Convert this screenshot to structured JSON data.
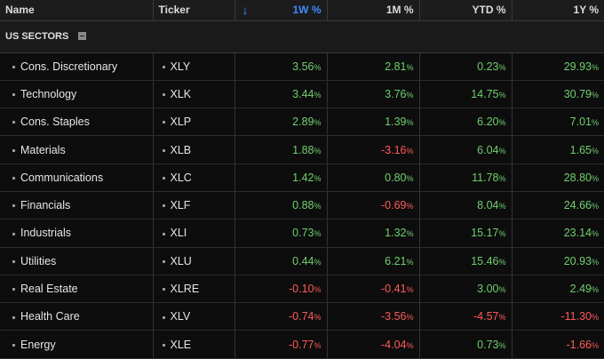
{
  "columns": {
    "name": "Name",
    "ticker": "Ticker",
    "w1": "1W %",
    "m1": "1M %",
    "ytd": "YTD %",
    "y1": "1Y %"
  },
  "sort_icon": "arrow-down-icon",
  "section": {
    "label": "US SECTORS",
    "collapse_icon": "minus-box-icon"
  },
  "colors": {
    "positive": "#6fcf6f",
    "negative": "#ff5a5a",
    "sort_accent": "#3d8bff"
  },
  "rows": [
    {
      "name": "Cons. Discretionary",
      "ticker": "XLY",
      "w1": "3.56",
      "m1": "2.81",
      "ytd": "0.23",
      "y1": "29.93"
    },
    {
      "name": "Technology",
      "ticker": "XLK",
      "w1": "3.44",
      "m1": "3.76",
      "ytd": "14.75",
      "y1": "30.79"
    },
    {
      "name": "Cons. Staples",
      "ticker": "XLP",
      "w1": "2.89",
      "m1": "1.39",
      "ytd": "6.20",
      "y1": "7.01"
    },
    {
      "name": "Materials",
      "ticker": "XLB",
      "w1": "1.88",
      "m1": "-3.16",
      "ytd": "6.04",
      "y1": "1.65"
    },
    {
      "name": "Communications",
      "ticker": "XLC",
      "w1": "1.42",
      "m1": "0.80",
      "ytd": "11.78",
      "y1": "28.80"
    },
    {
      "name": "Financials",
      "ticker": "XLF",
      "w1": "0.88",
      "m1": "-0.69",
      "ytd": "8.04",
      "y1": "24.66"
    },
    {
      "name": "Industrials",
      "ticker": "XLI",
      "w1": "0.73",
      "m1": "1.32",
      "ytd": "15.17",
      "y1": "23.14"
    },
    {
      "name": "Utilities",
      "ticker": "XLU",
      "w1": "0.44",
      "m1": "6.21",
      "ytd": "15.46",
      "y1": "20.93"
    },
    {
      "name": "Real Estate",
      "ticker": "XLRE",
      "w1": "-0.10",
      "m1": "-0.41",
      "ytd": "3.00",
      "y1": "2.49"
    },
    {
      "name": "Health Care",
      "ticker": "XLV",
      "w1": "-0.74",
      "m1": "-3.56",
      "ytd": "-4.57",
      "y1": "-11.30"
    },
    {
      "name": "Energy",
      "ticker": "XLE",
      "w1": "-0.77",
      "m1": "-4.04",
      "ytd": "0.73",
      "y1": "-1.66"
    }
  ]
}
